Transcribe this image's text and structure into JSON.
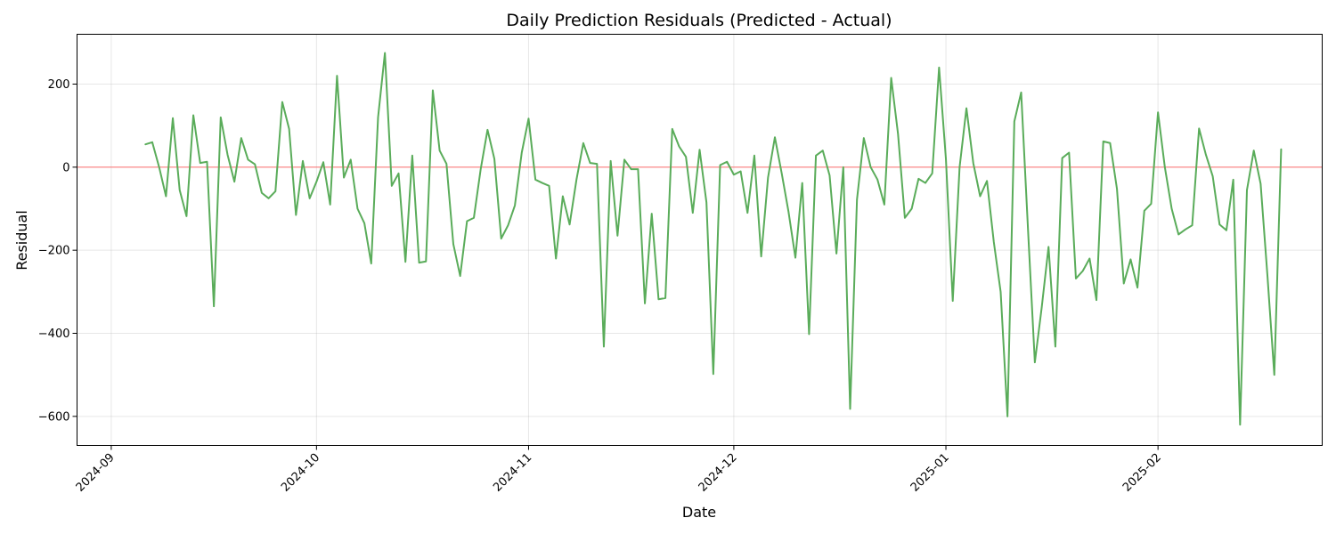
{
  "chart_data": {
    "type": "line",
    "title": "Daily Prediction Residuals (Predicted - Actual)",
    "xlabel": "Date",
    "ylabel": "Residual",
    "xlim": [
      "2024-08-27",
      "2025-02-25"
    ],
    "ylim": [
      -670,
      320
    ],
    "x_ticks": [
      "2024-09-01",
      "2024-10-01",
      "2024-11-01",
      "2024-12-01",
      "2025-01-01",
      "2025-02-01"
    ],
    "x_tick_labels": [
      "2024-09",
      "2024-10",
      "2024-11",
      "2024-12",
      "2025-01",
      "2025-02"
    ],
    "y_ticks": [
      -600,
      -400,
      -200,
      0,
      200
    ],
    "y_tick_labels": [
      "−600",
      "−400",
      "−200",
      "0",
      "200"
    ],
    "grid": true,
    "zero_line": {
      "y": 0,
      "color": "#ff6b6b"
    },
    "series": [
      {
        "color": "#5aac5a",
        "x_start": "2024-09-06",
        "x_step_days": 1,
        "values": [
          55,
          60,
          0,
          -70,
          118,
          -55,
          -118,
          125,
          10,
          13,
          -335,
          120,
          30,
          -35,
          70,
          18,
          7,
          -62,
          -75,
          -58,
          157,
          92,
          -115,
          15,
          -75,
          -35,
          12,
          -90,
          220,
          -25,
          18,
          -100,
          -135,
          -232,
          120,
          275,
          -45,
          -15,
          -228,
          28,
          -230,
          -227,
          185,
          40,
          8,
          -185,
          -262,
          -130,
          -122,
          -5,
          90,
          20,
          -172,
          -140,
          -92,
          35,
          117,
          -30,
          -38,
          -45,
          -220,
          -70,
          -138,
          -30,
          58,
          10,
          8,
          -432,
          15,
          -165,
          18,
          -5,
          -5,
          -328,
          -112,
          -318,
          -315,
          92,
          50,
          25,
          -110,
          42,
          -85,
          -498,
          5,
          13,
          -18,
          -10,
          -110,
          28,
          -215,
          -25,
          72,
          -15,
          -108,
          -218,
          -38,
          -402,
          28,
          40,
          -20,
          -208,
          0,
          -582,
          -78,
          70,
          0,
          -30,
          -90,
          215,
          80,
          -122,
          -100,
          -28,
          -38,
          -15,
          240,
          20,
          -322,
          0,
          142,
          10,
          -70,
          -33,
          -180,
          -300,
          -600,
          110,
          180,
          -150,
          -470,
          -338,
          -192,
          -432,
          22,
          35,
          -268,
          -250,
          -220,
          -320,
          62,
          58,
          -52,
          -280,
          -222,
          -290,
          -105,
          -88,
          132,
          0,
          -100,
          -162,
          -150,
          -140,
          93,
          30,
          -22,
          -138,
          -152,
          -30,
          -620,
          -55,
          40,
          -40,
          -262,
          -500,
          43
        ]
      }
    ]
  }
}
